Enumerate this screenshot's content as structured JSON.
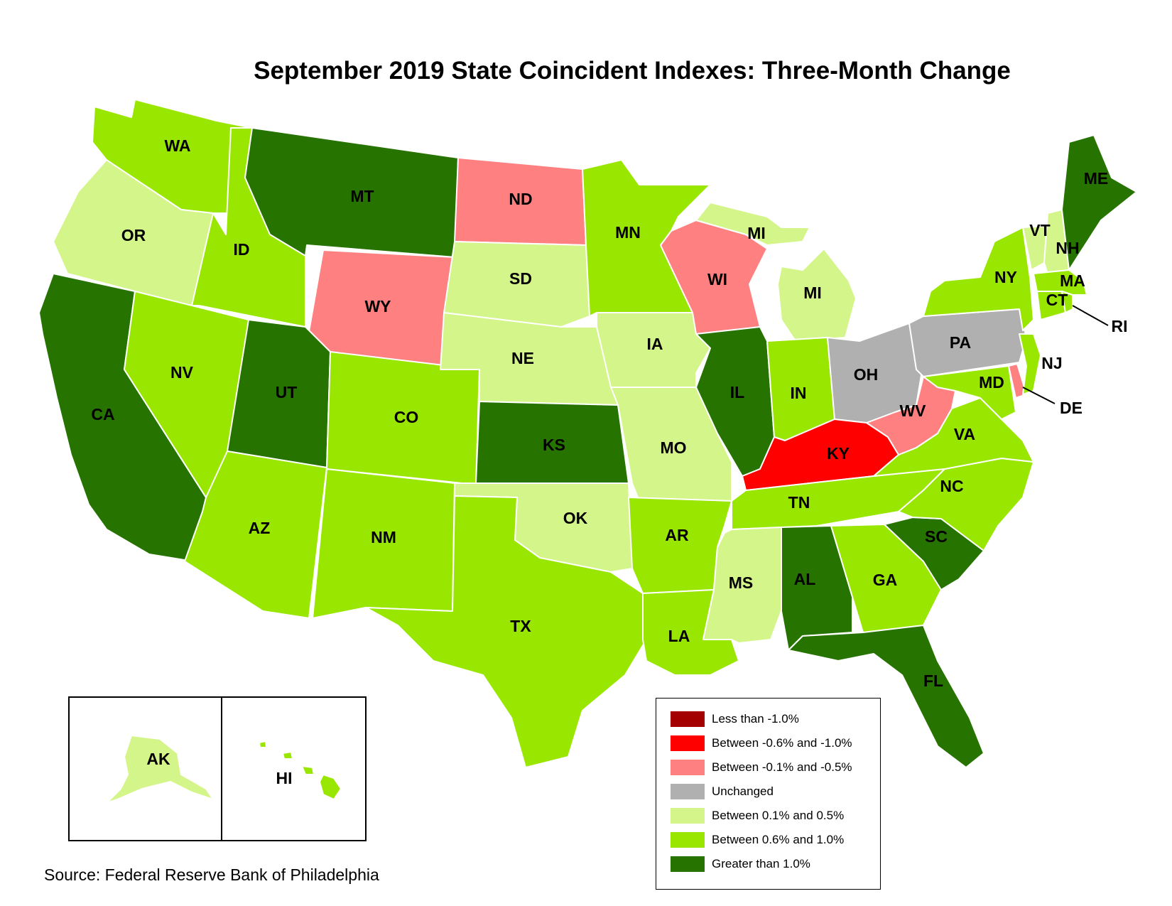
{
  "title": "September 2019 State Coincident Indexes: Three-Month Change",
  "source": "Source: Federal Reserve Bank of Philadelphia",
  "legend": [
    {
      "label": "Less than -1.0%",
      "color": "#a50000"
    },
    {
      "label": "Between -0.6% and -1.0%",
      "color": "#ff0000"
    },
    {
      "label": "Between -0.1% and -0.5%",
      "color": "#ff8080"
    },
    {
      "label": "Unchanged",
      "color": "#b0b0b0"
    },
    {
      "label": "Between 0.1% and 0.5%",
      "color": "#d4f58a"
    },
    {
      "label": "Between 0.6% and 1.0%",
      "color": "#99e600"
    },
    {
      "label": "Greater than 1.0%",
      "color": "#267300"
    }
  ],
  "states": {
    "WA": "Between 0.6% and 1.0%",
    "OR": "Between 0.1% and 0.5%",
    "CA": "Greater than 1.0%",
    "ID": "Between 0.6% and 1.0%",
    "NV": "Between 0.6% and 1.0%",
    "MT": "Greater than 1.0%",
    "WY": "Between -0.1% and -0.5%",
    "UT": "Greater than 1.0%",
    "CO": "Between 0.6% and 1.0%",
    "AZ": "Between 0.6% and 1.0%",
    "NM": "Between 0.6% and 1.0%",
    "ND": "Between -0.1% and -0.5%",
    "SD": "Between 0.1% and 0.5%",
    "NE": "Between 0.1% and 0.5%",
    "KS": "Greater than 1.0%",
    "OK": "Between 0.1% and 0.5%",
    "TX": "Between 0.6% and 1.0%",
    "MN": "Between 0.6% and 1.0%",
    "IA": "Between 0.1% and 0.5%",
    "MO": "Between 0.1% and 0.5%",
    "AR": "Between 0.6% and 1.0%",
    "LA": "Between 0.6% and 1.0%",
    "WI": "Between -0.1% and -0.5%",
    "IL": "Greater than 1.0%",
    "MI": "Between 0.1% and 0.5%",
    "IN": "Between 0.6% and 1.0%",
    "OH": "Unchanged",
    "KY": "Between -0.6% and -1.0%",
    "TN": "Between 0.6% and 1.0%",
    "MS": "Between 0.1% and 0.5%",
    "AL": "Greater than 1.0%",
    "GA": "Between 0.6% and 1.0%",
    "FL": "Greater than 1.0%",
    "SC": "Greater than 1.0%",
    "NC": "Between 0.6% and 1.0%",
    "VA": "Between 0.6% and 1.0%",
    "WV": "Between -0.1% and -0.5%",
    "PA": "Unchanged",
    "NY": "Between 0.6% and 1.0%",
    "VT": "Between 0.1% and 0.5%",
    "NH": "Between 0.1% and 0.5%",
    "ME": "Greater than 1.0%",
    "MA": "Between 0.6% and 1.0%",
    "CT": "Between 0.6% and 1.0%",
    "RI": "Between 0.6% and 1.0%",
    "NJ": "Between 0.6% and 1.0%",
    "DE": "Between -0.1% and -0.5%",
    "MD": "Between 0.6% and 1.0%",
    "AK": "Between 0.1% and 0.5%",
    "HI": "Between 0.6% and 1.0%"
  }
}
